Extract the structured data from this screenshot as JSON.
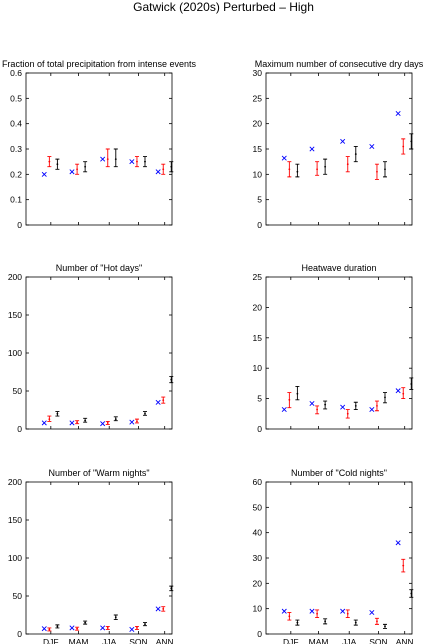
{
  "figure_title": "Gatwick (2020s) Perturbed – High",
  "colors": {
    "red": "#ff0000",
    "blue": "#0000ff",
    "black": "#000000"
  },
  "chart_data": [
    {
      "type": "scatter",
      "title": "Fraction of total precipitation from intense events",
      "categories": [
        "DJF",
        "MAM",
        "JJA",
        "SON",
        "ANN"
      ],
      "show_xticklabels": false,
      "ylim": [
        0,
        0.6
      ],
      "yticks": [
        "0",
        "0.1",
        "0.2",
        "0.3",
        "0.4",
        "0.5",
        "0.6"
      ],
      "series": [
        {
          "marker": "cross",
          "color": "blue",
          "values": [
            0.2,
            0.21,
            0.26,
            0.25,
            0.21
          ]
        },
        {
          "marker": "errorbar",
          "color": "red",
          "values": [
            0.25,
            0.22,
            0.26,
            0.25,
            0.22
          ],
          "low": [
            0.23,
            0.2,
            0.23,
            0.23,
            0.2
          ],
          "high": [
            0.27,
            0.24,
            0.3,
            0.27,
            0.24
          ]
        },
        {
          "marker": "errorbar",
          "color": "black",
          "values": [
            0.24,
            0.23,
            0.26,
            0.25,
            0.23
          ],
          "low": [
            0.22,
            0.21,
            0.23,
            0.23,
            0.21
          ],
          "high": [
            0.26,
            0.25,
            0.3,
            0.27,
            0.25
          ]
        }
      ]
    },
    {
      "type": "scatter",
      "title": "Maximum number of consecutive dry days",
      "categories": [
        "DJF",
        "MAM",
        "JJA",
        "SON",
        "ANN"
      ],
      "show_xticklabels": false,
      "ylim": [
        0,
        30
      ],
      "yticks": [
        "0",
        "5",
        "10",
        "15",
        "20",
        "25",
        "30"
      ],
      "series": [
        {
          "marker": "cross",
          "color": "blue",
          "values": [
            13.2,
            15,
            16.5,
            15.5,
            22
          ]
        },
        {
          "marker": "errorbar",
          "color": "red",
          "values": [
            11,
            11,
            12,
            10.5,
            15.5
          ],
          "low": [
            9.5,
            9.8,
            10.5,
            9,
            14
          ],
          "high": [
            12.5,
            12.5,
            13.5,
            12,
            17
          ]
        },
        {
          "marker": "errorbar",
          "color": "black",
          "values": [
            10.5,
            11.5,
            14,
            11,
            16.5
          ],
          "low": [
            9.5,
            10,
            12.5,
            9.5,
            15
          ],
          "high": [
            12,
            13,
            15.5,
            12.5,
            18
          ]
        }
      ]
    },
    {
      "type": "scatter",
      "title": "Number of \"Hot days\"",
      "categories": [
        "DJF",
        "MAM",
        "JJA",
        "SON",
        "ANN"
      ],
      "show_xticklabels": false,
      "ylim": [
        0,
        200
      ],
      "yticks": [
        "0",
        "50",
        "100",
        "150",
        "200"
      ],
      "series": [
        {
          "marker": "cross",
          "color": "blue",
          "values": [
            8,
            8,
            7,
            9,
            35
          ]
        },
        {
          "marker": "errorbar",
          "color": "red",
          "values": [
            13,
            9,
            8,
            10,
            38
          ],
          "low": [
            10,
            7,
            6,
            8,
            34
          ],
          "high": [
            17,
            11,
            10,
            13,
            42
          ]
        },
        {
          "marker": "errorbar",
          "color": "black",
          "values": [
            20,
            11,
            13,
            20,
            65
          ],
          "low": [
            17,
            9,
            11,
            18,
            61
          ],
          "high": [
            23,
            14,
            16,
            23,
            69
          ]
        }
      ]
    },
    {
      "type": "scatter",
      "title": "Heatwave duration",
      "categories": [
        "DJF",
        "MAM",
        "JJA",
        "SON",
        "ANN"
      ],
      "show_xticklabels": false,
      "ylim": [
        0,
        25
      ],
      "yticks": [
        "0",
        "5",
        "10",
        "15",
        "20",
        "25"
      ],
      "series": [
        {
          "marker": "cross",
          "color": "blue",
          "values": [
            3.2,
            4.2,
            3.6,
            3.2,
            6.3
          ]
        },
        {
          "marker": "errorbar",
          "color": "red",
          "values": [
            4.8,
            3.2,
            2.5,
            3.8,
            5.8
          ],
          "low": [
            3.5,
            2.5,
            1.8,
            3,
            5
          ],
          "high": [
            6,
            3.8,
            3.2,
            4.6,
            6.8
          ]
        },
        {
          "marker": "errorbar",
          "color": "black",
          "values": [
            5.8,
            4,
            3.8,
            5.2,
            7.4
          ],
          "low": [
            4.8,
            3.3,
            3.2,
            4.3,
            6.5
          ],
          "high": [
            7,
            4.6,
            4.4,
            6,
            8.4
          ]
        }
      ]
    },
    {
      "type": "scatter",
      "title": "Number of \"Warm nights\"",
      "categories": [
        "DJF",
        "MAM",
        "JJA",
        "SON",
        "ANN"
      ],
      "show_xticklabels": true,
      "ylim": [
        0,
        200
      ],
      "yticks": [
        "0",
        "50",
        "100",
        "150",
        "200"
      ],
      "series": [
        {
          "marker": "cross",
          "color": "blue",
          "values": [
            7,
            8,
            8,
            6,
            33
          ]
        },
        {
          "marker": "errorbar",
          "color": "red",
          "values": [
            6,
            7,
            8,
            8,
            33
          ],
          "low": [
            4,
            5,
            6,
            6,
            30
          ],
          "high": [
            8,
            9,
            10,
            10,
            36
          ]
        },
        {
          "marker": "errorbar",
          "color": "black",
          "values": [
            10,
            15,
            22,
            13,
            60
          ],
          "low": [
            8,
            13,
            19,
            11,
            57
          ],
          "high": [
            12,
            17,
            25,
            15,
            63
          ]
        }
      ]
    },
    {
      "type": "scatter",
      "title": "Number of \"Cold nights\"",
      "categories": [
        "DJF",
        "MAM",
        "JJA",
        "SON",
        "ANN"
      ],
      "show_xticklabels": true,
      "ylim": [
        0,
        60
      ],
      "yticks": [
        "0",
        "10",
        "20",
        "30",
        "40",
        "50",
        "60"
      ],
      "series": [
        {
          "marker": "cross",
          "color": "blue",
          "values": [
            9,
            9,
            9,
            8.5,
            36
          ]
        },
        {
          "marker": "errorbar",
          "color": "red",
          "values": [
            7,
            8,
            8,
            5,
            27
          ],
          "low": [
            5.5,
            6.5,
            6.5,
            3.8,
            24.5
          ],
          "high": [
            8.5,
            9.5,
            9.5,
            6.2,
            29.5
          ]
        },
        {
          "marker": "errorbar",
          "color": "black",
          "values": [
            4.5,
            5,
            4.5,
            3,
            16
          ],
          "low": [
            3.5,
            4,
            3.5,
            2.2,
            14.5
          ],
          "high": [
            5.5,
            6,
            5.5,
            3.8,
            17.5
          ]
        }
      ]
    }
  ]
}
